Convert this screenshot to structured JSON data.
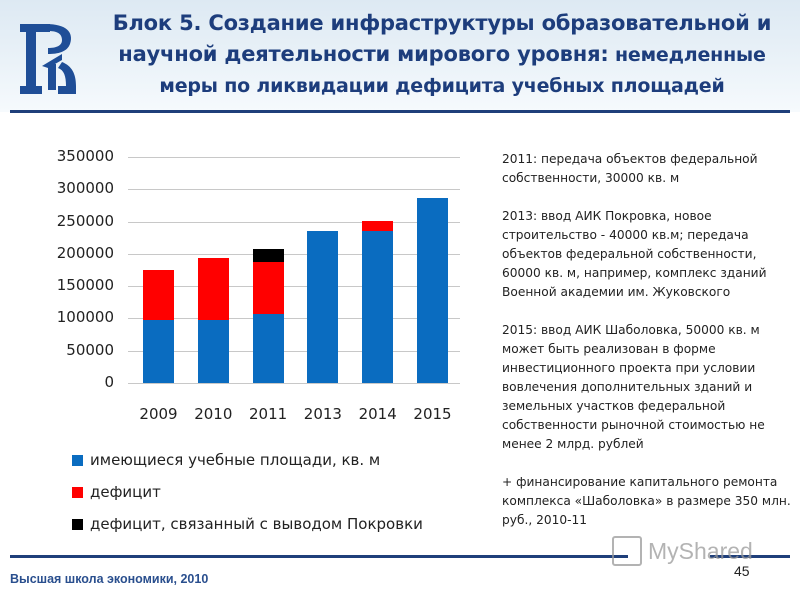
{
  "header": {
    "title_line1": "Блок 5. Создание инфраструктуры образовательной и",
    "title_line2_bold": "научной деятельности мирового уровня:",
    "title_line2_rest": " немедленные",
    "title_line3": "меры по ликвидации дефицита учебных площадей",
    "logo": "hse-logo-icon"
  },
  "chart_data": {
    "type": "bar",
    "stacked": true,
    "title": "",
    "xlabel": "",
    "ylabel": "",
    "ylim": [
      0,
      350000
    ],
    "yticks": [
      0,
      50000,
      100000,
      150000,
      200000,
      250000,
      300000,
      350000
    ],
    "ytick_labels": [
      "0",
      "50000",
      "100000",
      "150000",
      "200000",
      "250000",
      "300000",
      "350000"
    ],
    "categories": [
      "2009",
      "2010",
      "2011",
      "2013",
      "2014",
      "2015"
    ],
    "series": [
      {
        "name": "имеющиеся учебные площади, кв. м",
        "color": "#0a6cc0",
        "values": [
          97000,
          97000,
          107000,
          236000,
          236000,
          287000
        ]
      },
      {
        "name": "дефицит",
        "color": "#ff0000",
        "values": [
          78000,
          96000,
          80000,
          0,
          15000,
          0
        ]
      },
      {
        "name": "дефицит, связанный с выводом Покровки",
        "color": "#000000",
        "values": [
          0,
          0,
          20000,
          0,
          0,
          0
        ]
      }
    ],
    "grid": true,
    "legend_position": "bottom"
  },
  "legend": {
    "items": [
      {
        "label": "имеющиеся учебные площади, кв. м",
        "color": "#0a6cc0"
      },
      {
        "label": "дефицит",
        "color": "#ff0000"
      },
      {
        "label": "дефицит, связанный с выводом Покровки",
        "color": "#000000"
      }
    ]
  },
  "notes": {
    "p1": "2011: передача объектов федеральной собственности, 30000 кв. м",
    "p2": "2013: ввод АИК Покровка, новое строительство - 40000 кв.м; передача объектов федеральной собственности, 60000 кв. м, например, комплекс зданий Военной академии им. Жуковского",
    "p3": "2015: ввод АИК Шаболовка, 50000 кв. м может быть реализован в форме инвестиционного проекта при условии вовлечения дополнительных зданий и земельных участков федеральной собственности рыночной стоимостью не менее 2 млрд. рублей",
    "p4": "+ финансирование капитального ремонта комплекса «Шаболовка» в размере 350 млн. руб., 2010-11"
  },
  "footer": {
    "org": "Высшая школа экономики, 2010",
    "page_number": "45",
    "watermark": "MyShared"
  },
  "colors": {
    "title": "#1d3d7c",
    "rule": "#1f3f7a",
    "blue": "#0a6cc0",
    "red": "#ff0000",
    "black": "#000000"
  }
}
